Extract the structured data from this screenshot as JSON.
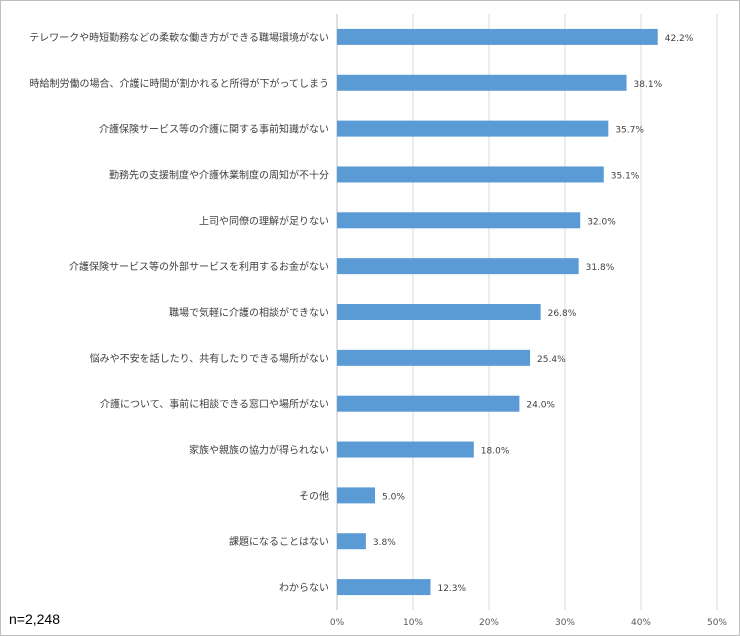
{
  "chart_data": {
    "type": "bar",
    "orientation": "horizontal",
    "categories": [
      "テレワークや時短勤務などの柔軟な働き方ができる職場環境がない",
      "時給制労働の場合、介護に時間が割かれると所得が下がってしまう",
      "介護保険サービス等の介護に関する事前知識がない",
      "勤務先の支援制度や介護休業制度の周知が不十分",
      "上司や同僚の理解が足りない",
      "介護保険サービス等の外部サービスを利用するお金がない",
      "職場で気軽に介護の相談ができない",
      "悩みや不安を話したり、共有したりできる場所がない",
      "介護について、事前に相談できる窓口や場所がない",
      "家族や親族の協力が得られない",
      "その他",
      "課題になることはない",
      "わからない"
    ],
    "values": [
      42.2,
      38.1,
      35.7,
      35.1,
      32.0,
      31.8,
      26.8,
      25.4,
      24.0,
      18.0,
      5.0,
      3.8,
      12.3
    ],
    "value_labels": [
      "42.2%",
      "38.1%",
      "35.7%",
      "35.1%",
      "32.0%",
      "31.8%",
      "26.8%",
      "25.4%",
      "24.0%",
      "18.0%",
      "5.0%",
      "3.8%",
      "12.3%"
    ],
    "xlim": [
      0,
      50
    ],
    "x_ticks": [
      "0%",
      "10%",
      "20%",
      "30%",
      "40%",
      "50%"
    ],
    "grid": true,
    "bar_color": "#5b9bd5",
    "grid_color": "#d9d9d9"
  },
  "note": "n=2,248"
}
